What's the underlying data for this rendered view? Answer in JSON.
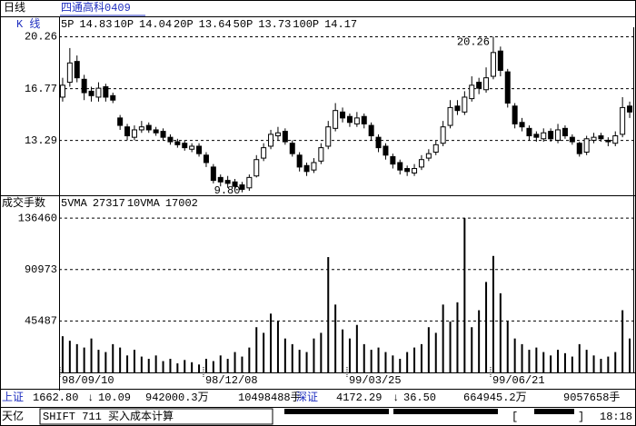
{
  "header": {
    "period": "日线",
    "stock": "四通高科0409"
  },
  "chart_data": [
    {
      "type": "candlestick",
      "panel_label": "K  线",
      "ma": [
        {
          "name": "5P",
          "value": 14.83,
          "color": "#000000"
        },
        {
          "name": "10P",
          "value": 14.04,
          "color": "#c000c0"
        },
        {
          "name": "20P",
          "value": 13.64,
          "color": "#e0406a"
        },
        {
          "name": "50P",
          "value": 13.73,
          "color": "#d050d0"
        },
        {
          "name": "100P",
          "value": 14.17,
          "color": "#b08000"
        }
      ],
      "high_label": "20.26",
      "low_label": "9.80",
      "open": [
        16.2,
        17.2,
        18.6,
        17.4,
        16.6,
        16.2,
        16.9,
        16.3,
        14.8,
        14.2,
        13.5,
        14.0,
        14.3,
        14.0,
        13.9,
        13.5,
        13.2,
        13.1,
        12.7,
        12.9,
        12.3,
        11.5,
        10.8,
        10.6,
        10.5,
        10.3,
        10.1,
        10.9,
        12.1,
        12.9,
        13.6,
        13.9,
        13.1,
        12.3,
        11.6,
        11.3,
        11.9,
        12.9,
        14.1,
        15.2,
        14.9,
        14.4,
        14.9,
        14.3,
        13.5,
        12.9,
        12.2,
        11.8,
        11.4,
        11.1,
        11.5,
        12.1,
        12.5,
        13.1,
        14.3,
        15.6,
        15.2,
        16.1,
        17.2,
        16.7,
        17.6,
        19.3,
        17.9,
        15.6,
        14.5,
        14.1,
        13.7,
        13.4,
        13.9,
        13.3,
        14.1,
        13.5,
        13.1,
        12.5,
        13.3,
        13.6,
        13.3,
        13.1,
        13.7,
        15.6
      ],
      "high": [
        17.5,
        19.5,
        19.0,
        17.7,
        16.9,
        17.2,
        17.1,
        16.5,
        15.0,
        14.4,
        14.3,
        14.6,
        14.5,
        14.2,
        14.1,
        13.7,
        13.4,
        13.3,
        13.1,
        13.1,
        12.5,
        11.7,
        11.0,
        10.9,
        10.7,
        10.5,
        11.0,
        12.3,
        13.1,
        14.0,
        14.2,
        14.1,
        13.3,
        12.5,
        11.8,
        12.1,
        13.1,
        14.6,
        15.8,
        15.5,
        15.1,
        15.2,
        15.1,
        14.5,
        13.7,
        13.1,
        12.4,
        12.0,
        11.6,
        11.7,
        12.3,
        12.7,
        13.3,
        14.6,
        16.0,
        16.0,
        16.6,
        17.6,
        17.5,
        18.2,
        20.26,
        19.6,
        18.1,
        15.8,
        14.8,
        14.3,
        13.9,
        14.1,
        14.1,
        14.4,
        14.3,
        13.7,
        13.2,
        13.6,
        13.8,
        13.8,
        13.5,
        13.9,
        16.2,
        15.9
      ],
      "low": [
        15.9,
        16.9,
        17.2,
        16.0,
        15.9,
        15.9,
        15.9,
        15.8,
        14.0,
        13.3,
        13.3,
        13.8,
        13.8,
        13.6,
        13.3,
        13.0,
        12.8,
        12.6,
        12.5,
        12.2,
        11.5,
        10.4,
        10.2,
        10.1,
        10.0,
        9.8,
        9.9,
        10.8,
        11.9,
        12.7,
        13.3,
        13.0,
        12.2,
        11.2,
        10.9,
        11.1,
        11.7,
        12.7,
        13.9,
        14.5,
        14.2,
        14.2,
        14.1,
        13.3,
        12.5,
        12.0,
        11.4,
        11.0,
        10.9,
        10.9,
        11.3,
        11.9,
        12.3,
        12.9,
        14.1,
        15.0,
        15.0,
        15.9,
        16.4,
        16.5,
        17.4,
        17.6,
        15.5,
        14.1,
        13.9,
        13.3,
        13.2,
        13.2,
        13.2,
        13.1,
        13.4,
        13.0,
        12.2,
        12.3,
        13.1,
        13.2,
        12.9,
        12.9,
        13.5,
        14.8
      ],
      "close": [
        17.0,
        18.5,
        17.5,
        16.5,
        16.3,
        16.8,
        16.2,
        16.0,
        14.3,
        13.6,
        14.0,
        14.2,
        14.0,
        13.8,
        13.5,
        13.2,
        13.0,
        12.8,
        12.9,
        12.4,
        11.8,
        10.6,
        10.5,
        10.4,
        10.2,
        10.0,
        10.8,
        12.0,
        12.8,
        13.7,
        13.8,
        13.2,
        12.4,
        11.5,
        11.2,
        11.8,
        12.8,
        14.2,
        15.3,
        14.8,
        14.5,
        14.8,
        14.4,
        13.6,
        12.8,
        12.3,
        11.7,
        11.3,
        11.2,
        11.4,
        12.0,
        12.4,
        13.0,
        14.2,
        15.5,
        15.3,
        16.2,
        17.0,
        16.8,
        17.5,
        19.2,
        18.0,
        15.8,
        14.4,
        14.2,
        13.6,
        13.5,
        13.8,
        13.4,
        14.0,
        13.6,
        13.2,
        12.4,
        13.4,
        13.5,
        13.4,
        13.2,
        13.6,
        15.5,
        15.2
      ],
      "color": "#000000",
      "ylim": [
        9.6,
        20.9
      ],
      "yticks": [
        20.26,
        16.77,
        13.29
      ],
      "grid": true
    },
    {
      "type": "bar",
      "panel_label": "成交手数",
      "ma": [
        {
          "name": "5VMA",
          "value": 27317,
          "color": "#000000"
        },
        {
          "name": "10VMA",
          "value": 17002,
          "color": "#c000c0"
        }
      ],
      "categories": [
        "98/09/10",
        null,
        null,
        null,
        null,
        null,
        null,
        null,
        null,
        null,
        null,
        null,
        null,
        null,
        null,
        null,
        null,
        null,
        null,
        null,
        "98/12/08",
        null,
        null,
        null,
        null,
        null,
        null,
        null,
        null,
        null,
        null,
        null,
        null,
        null,
        null,
        null,
        null,
        null,
        null,
        null,
        "99/03/25",
        null,
        null,
        null,
        null,
        null,
        null,
        null,
        null,
        null,
        null,
        null,
        null,
        null,
        null,
        null,
        null,
        null,
        null,
        null,
        "99/06/21",
        null,
        null,
        null,
        null,
        null,
        null,
        null,
        null,
        null,
        null,
        null,
        null,
        null,
        null,
        null,
        null,
        null,
        null,
        null
      ],
      "values": [
        32000,
        28000,
        25000,
        22000,
        30000,
        20000,
        18000,
        25000,
        22000,
        15000,
        20000,
        14000,
        12000,
        15000,
        10000,
        12000,
        8000,
        11000,
        9000,
        7000,
        12000,
        10000,
        15000,
        12000,
        18000,
        14000,
        22000,
        40000,
        35000,
        52000,
        45000,
        30000,
        25000,
        20000,
        18000,
        30000,
        35000,
        102000,
        60000,
        38000,
        30000,
        42000,
        25000,
        20000,
        22000,
        18000,
        15000,
        12000,
        18000,
        22000,
        25000,
        40000,
        35000,
        60000,
        45000,
        62000,
        136460,
        40000,
        55000,
        80000,
        103000,
        70000,
        45000,
        30000,
        25000,
        20000,
        22000,
        18000,
        15000,
        20000,
        17000,
        14000,
        25000,
        20000,
        15000,
        12000,
        14000,
        18000,
        55000,
        30000
      ],
      "color": "#000000",
      "ylim": [
        0,
        143000
      ],
      "yticks": [
        136460,
        90973,
        45487
      ],
      "grid": true
    }
  ],
  "status": {
    "sh_name": "上证",
    "sh_index": "1662.80",
    "sh_arrow": "↓",
    "sh_change": "10.09",
    "sh_amount": "942000.3万",
    "sh_volume": "10498488手",
    "sz_name": "深证",
    "sz_index": "4172.29",
    "sz_arrow": "↓",
    "sz_change": "36.50",
    "sz_amount": "664945.2万",
    "sz_volume": "9057658手",
    "app": "天亿",
    "command": "SHIFT 711 买入成本计算",
    "bracket_open": "[",
    "bracket_close": "]",
    "time": "18:18"
  }
}
